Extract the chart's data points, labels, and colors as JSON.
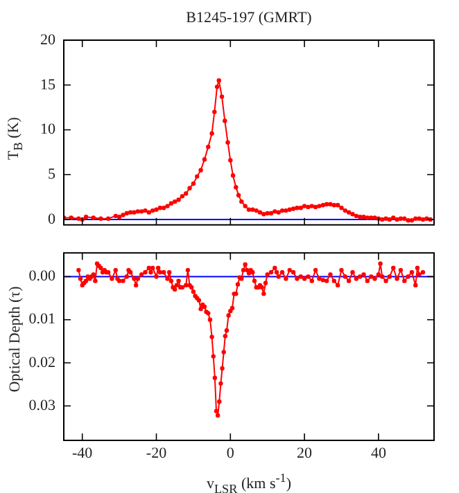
{
  "chart_data": [
    {
      "type": "line",
      "title": "B1245-197 (GMRT)",
      "ylabel": "T$_{B}$ (K)",
      "marker": "circle",
      "line_style": "solid",
      "grid": false,
      "legend": false,
      "tick_labels": "y",
      "xlim": [
        -45,
        55
      ],
      "xticks": [
        -40,
        -20,
        0,
        20,
        40
      ],
      "ylim": [
        -0.6,
        20
      ],
      "yticks": [
        0,
        5,
        10,
        15,
        20
      ],
      "ref_lines": [
        {
          "axis": "y",
          "value": 0,
          "color": "#0000ff"
        }
      ],
      "series": [
        {
          "color": "#ff0000",
          "x": [
            -45,
            -43,
            -41,
            -40,
            -39,
            -37,
            -35,
            -33,
            -31,
            -30,
            -29,
            -28,
            -27,
            -26,
            -25,
            -24,
            -23,
            -22,
            -21,
            -20,
            -19,
            -18,
            -17,
            -16,
            -15,
            -14,
            -13,
            -12,
            -11,
            -10,
            -9,
            -8,
            -7,
            -6,
            -5,
            -4.3,
            -3.6,
            -3.1,
            -2.3,
            -1.5,
            -0.7,
            0,
            0.7,
            1.5,
            2.2,
            3,
            4,
            5,
            6,
            7,
            8,
            9,
            10,
            11,
            12,
            13,
            14,
            15,
            16,
            17,
            18,
            19,
            20,
            21,
            22,
            23,
            24,
            25,
            26,
            27,
            28,
            29,
            30,
            31,
            32,
            33,
            34,
            35,
            36,
            37,
            38,
            39,
            40,
            41,
            42,
            43,
            44,
            45,
            46,
            47,
            48,
            49,
            50,
            51,
            52,
            53,
            54
          ],
          "values": [
            0.2,
            0.2,
            0.1,
            0,
            0.3,
            0.2,
            0.1,
            0.1,
            0.4,
            0.3,
            0.5,
            0.7,
            0.8,
            0.8,
            0.9,
            0.9,
            1.0,
            0.8,
            1.0,
            1.1,
            1.3,
            1.3,
            1.5,
            1.8,
            2.0,
            2.2,
            2.6,
            2.9,
            3.5,
            4.0,
            4.8,
            5.5,
            6.7,
            8.1,
            9.6,
            12.0,
            14.8,
            15.5,
            13.7,
            11.0,
            8.6,
            6.6,
            4.9,
            3.6,
            2.7,
            2.0,
            1.5,
            1.1,
            1.1,
            1.0,
            0.8,
            0.6,
            0.7,
            0.7,
            0.9,
            0.8,
            1.0,
            1.0,
            1.1,
            1.2,
            1.3,
            1.3,
            1.5,
            1.4,
            1.5,
            1.4,
            1.5,
            1.6,
            1.7,
            1.7,
            1.6,
            1.6,
            1.3,
            1.0,
            0.8,
            0.6,
            0.4,
            0.3,
            0.3,
            0.2,
            0.2,
            0.2,
            0.1,
            0,
            0.1,
            0,
            0.2,
            0,
            0.1,
            0.1,
            -0.1,
            -0.1,
            0.1,
            0.1,
            0,
            0.1,
            0
          ]
        }
      ]
    },
    {
      "type": "line",
      "ylabel": "Optical Depth (τ)",
      "xlabel": "v$_{LSR}$ (km s$^{-1}$)",
      "marker": "circle",
      "line_style": "solid",
      "grid": false,
      "legend": false,
      "xlim": [
        -45,
        55
      ],
      "xticks": [
        -40,
        -20,
        0,
        20,
        40
      ],
      "ylim": [
        0.038,
        -0.0055
      ],
      "yticks": [
        {
          "value": 0,
          "label": "0.00"
        },
        {
          "value": 0.01,
          "label": "0.01"
        },
        {
          "value": 0.02,
          "label": "0.02"
        },
        {
          "value": 0.03,
          "label": "0.03"
        }
      ],
      "ref_lines": [
        {
          "axis": "y",
          "value": 0,
          "color": "#0000ff"
        }
      ],
      "series": [
        {
          "color": "#ff0000",
          "x": [
            -41,
            -40.5,
            -40,
            -39.5,
            -39,
            -38.5,
            -38,
            -37.5,
            -37,
            -36.5,
            -36,
            -35.5,
            -35,
            -34.5,
            -34,
            -33.5,
            -33,
            -32,
            -31,
            -30.5,
            -30,
            -29,
            -28,
            -27.5,
            -27,
            -26,
            -25.5,
            -25,
            -24,
            -23,
            -22,
            -21.5,
            -21,
            -20,
            -19.5,
            -19,
            -18,
            -17,
            -16.5,
            -16,
            -15.5,
            -15,
            -14.5,
            -14,
            -13.5,
            -13,
            -12,
            -11.5,
            -11,
            -10.5,
            -10,
            -9.5,
            -9,
            -8.5,
            -8,
            -7.5,
            -7,
            -6.5,
            -6,
            -5.5,
            -5,
            -4.6,
            -4.2,
            -3.8,
            -3.4,
            -3,
            -2.6,
            -2.2,
            -1.8,
            -1.4,
            -1,
            -0.5,
            0,
            0.5,
            1,
            1.5,
            2,
            2.5,
            3,
            3.5,
            4,
            4.5,
            5,
            5.5,
            6,
            6.5,
            7,
            7.5,
            8,
            8.5,
            9,
            9.5,
            10,
            11,
            12,
            12.5,
            13,
            14,
            15,
            16,
            17,
            18,
            19,
            20,
            21,
            22,
            23,
            24,
            25,
            26,
            27,
            28,
            29,
            30,
            31,
            32,
            33,
            34,
            35,
            36,
            37,
            38,
            39,
            40,
            40.5,
            41,
            42,
            43,
            44,
            45,
            46,
            47,
            48,
            49,
            50,
            50.5,
            51,
            52
          ],
          "values": [
            -0.0015,
            0.0005,
            0.002,
            0.0015,
            0.001,
            0,
            0.0005,
            0,
            -0.0005,
            0.001,
            -0.003,
            -0.0025,
            -0.002,
            -0.001,
            -0.0015,
            -0.001,
            -0.001,
            0.0005,
            -0.0015,
            0.0005,
            0.001,
            0.001,
            0,
            -0.0015,
            -0.001,
            0.0005,
            0.002,
            0.0005,
            -0.0005,
            -0.001,
            -0.002,
            -0.001,
            -0.002,
            0,
            -0.002,
            -0.001,
            -0.001,
            0.0005,
            -0.001,
            0.001,
            0.0025,
            0.003,
            0.002,
            0.001,
            0.0025,
            0.0025,
            0.002,
            -0.0015,
            0.002,
            0.0025,
            0.0035,
            0.0045,
            0.005,
            0.0055,
            0.0075,
            0.0065,
            0.007,
            0.0082,
            0.0085,
            0.01,
            0.014,
            0.0185,
            0.0235,
            0.0312,
            0.0322,
            0.029,
            0.0248,
            0.0213,
            0.0175,
            0.0138,
            0.0125,
            0.009,
            0.008,
            0.0073,
            0.004,
            0.004,
            0.0018,
            0.0002,
            0.0005,
            -0.0015,
            -0.0028,
            -0.0015,
            -0.0008,
            -0.0015,
            -0.001,
            0.001,
            0.0025,
            0.0025,
            0.002,
            0.0025,
            0.004,
            0.0015,
            -0.0005,
            -0.001,
            -0.002,
            -0.001,
            0,
            -0.001,
            0.0005,
            -0.0015,
            -0.001,
            0.0005,
            0,
            0.0005,
            0,
            0.001,
            -0.0015,
            0.0005,
            0.0008,
            0.001,
            -0.0005,
            0.001,
            0.002,
            -0.0015,
            0,
            0.001,
            -0.001,
            0.0005,
            0,
            -0.0005,
            0.001,
            0,
            0.0005,
            -0.0005,
            -0.003,
            0,
            0.001,
            0,
            -0.002,
            0.0005,
            -0.0015,
            0.001,
            0,
            -0.001,
            0.002,
            -0.002,
            -0.0005,
            -0.001
          ]
        }
      ]
    }
  ]
}
